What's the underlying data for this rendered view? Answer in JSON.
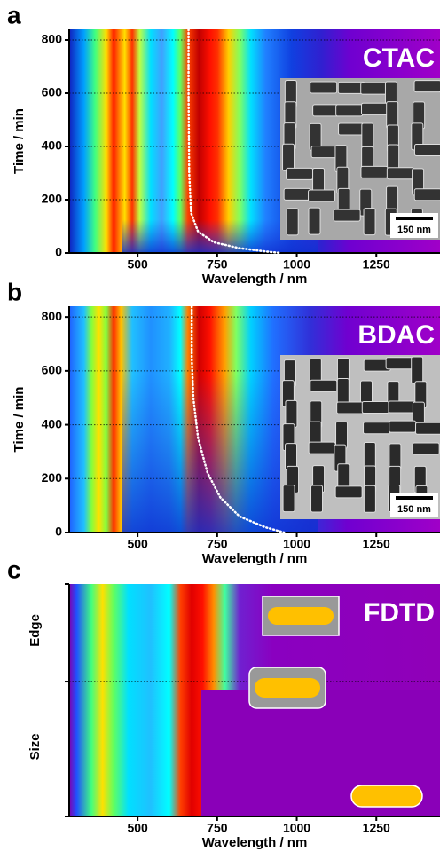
{
  "chart_data": [
    {
      "type": "heatmap",
      "panel_label": "a",
      "annotation": "CTAC",
      "scale_bar": "150 nm",
      "xlabel": "Wavelength / nm",
      "ylabel": "Time / min",
      "xlim": [
        285,
        1450
      ],
      "xticks": [
        500,
        750,
        1000,
        1250
      ],
      "ylim": [
        0,
        840
      ],
      "yticks": [
        0,
        200,
        400,
        600,
        800
      ],
      "grid": true,
      "peak": {
        "color": "#ffffff",
        "x": [
          660,
          660,
          662,
          668,
          690,
          740,
          820,
          900,
          950
        ],
        "y": [
          840,
          600,
          300,
          150,
          80,
          40,
          18,
          6,
          0
        ]
      }
    },
    {
      "type": "heatmap",
      "panel_label": "b",
      "annotation": "BDAC",
      "scale_bar": "150 nm",
      "xlabel": "Wavelength / nm",
      "ylabel": "Time / min",
      "xlim": [
        285,
        1450
      ],
      "xticks": [
        500,
        750,
        1000,
        1250
      ],
      "ylim": [
        0,
        840
      ],
      "yticks": [
        0,
        200,
        400,
        600,
        800
      ],
      "grid": true,
      "peak": {
        "color": "#ffffff",
        "x": [
          670,
          670,
          675,
          690,
          720,
          760,
          820,
          900,
          960
        ],
        "y": [
          840,
          650,
          500,
          350,
          220,
          130,
          60,
          20,
          0
        ]
      }
    },
    {
      "type": "heatmap",
      "panel_label": "c",
      "annotation": "FDTD",
      "xlabel": "Wavelength / nm",
      "ylabels": [
        "Edge",
        "Size"
      ],
      "xlim": [
        285,
        1450
      ],
      "xticks": [
        500,
        750,
        1000,
        1250
      ]
    }
  ]
}
